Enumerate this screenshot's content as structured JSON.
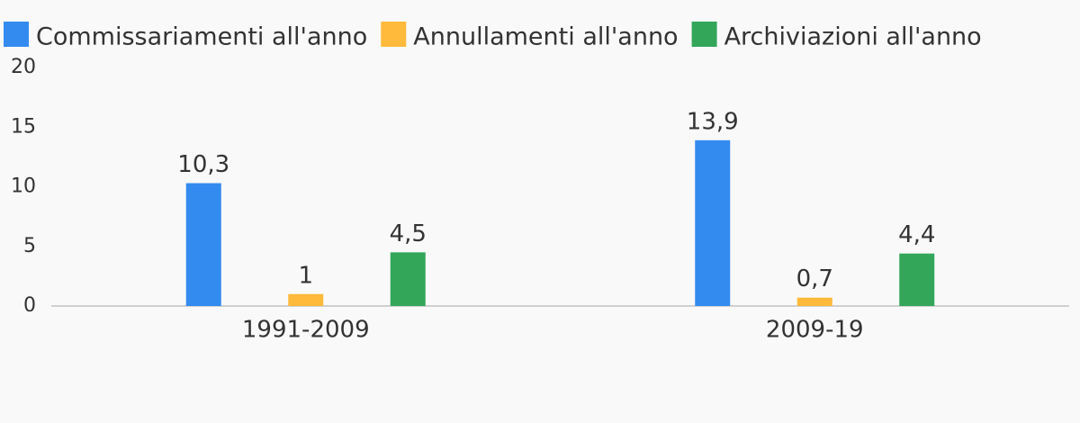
{
  "chart_data": {
    "type": "bar",
    "categories": [
      "1991-2009",
      "2009-19"
    ],
    "series": [
      {
        "name": "Commissariamenti all'anno",
        "color": "#338bef",
        "values": [
          10.3,
          13.9
        ],
        "value_labels": [
          "10,3",
          "13,9"
        ]
      },
      {
        "name": "Annullamenti all'anno",
        "color": "#ffb93b",
        "values": [
          1,
          0.7
        ],
        "value_labels": [
          "1",
          "0,7"
        ]
      },
      {
        "name": "Archiviazioni all'anno",
        "color": "#33a65a",
        "values": [
          4.5,
          4.4
        ],
        "value_labels": [
          "4,5",
          "4,4"
        ]
      }
    ],
    "ylim": [
      0,
      20
    ],
    "yticks": [
      0,
      5,
      10,
      15,
      20
    ],
    "grid": false,
    "legend": "top"
  }
}
